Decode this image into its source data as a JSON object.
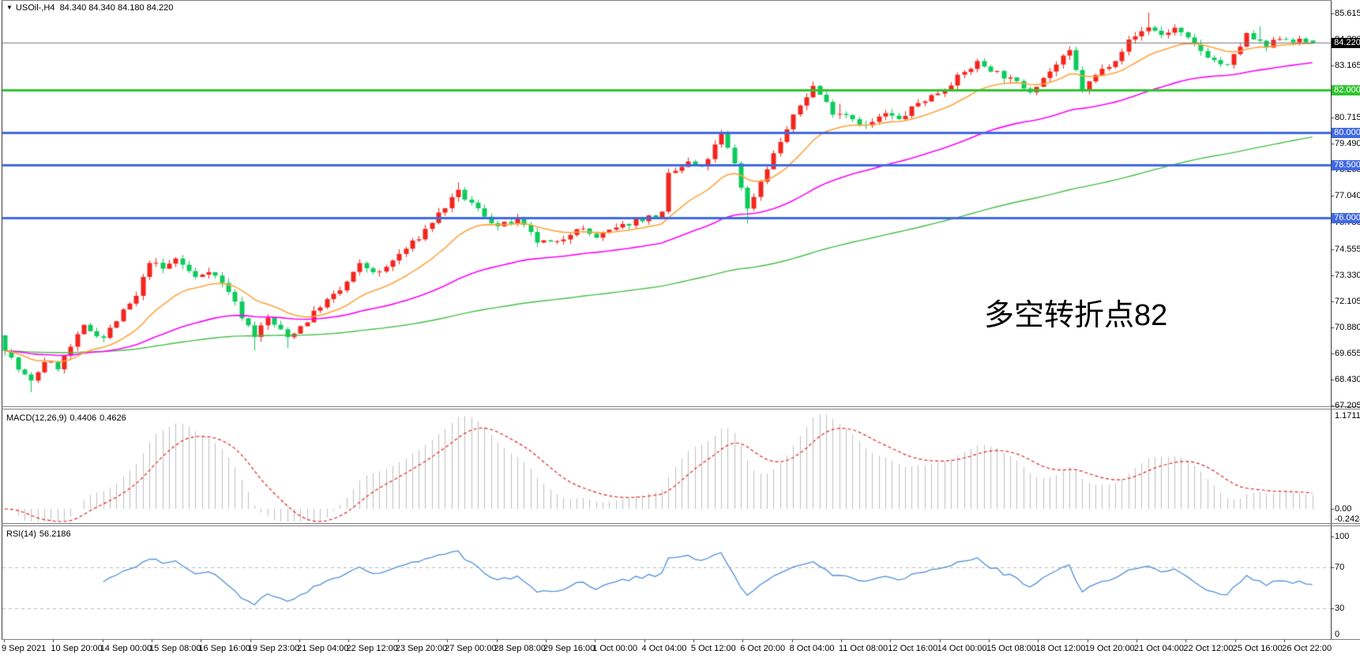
{
  "window": {
    "symbol_period": "USOil-,H4",
    "ohlc": "84.340 84.340 84.180 84.220",
    "dropdown_icon": "▼"
  },
  "chart_data": {
    "type": "candlestick",
    "symbol": "USOil-",
    "timeframe": "H4",
    "title": "USOil-,H4 84.340 84.340 84.180 84.220",
    "last_candle": {
      "open": 84.34,
      "high": 84.34,
      "low": 84.18,
      "close": 84.22
    },
    "price_axis_ticks": [
      "85.615",
      "84.390",
      "83.165",
      "81.940",
      "80.715",
      "79.490",
      "78.265",
      "77.040",
      "75.780",
      "74.555",
      "73.330",
      "72.105",
      "70.880",
      "69.655",
      "68.430",
      "67.205"
    ],
    "x_labels": [
      "9 Sep 2021",
      "10 Sep 20:00",
      "14 Sep 00:00",
      "15 Sep 08:00",
      "16 Sep 16:00",
      "19 Sep 23:00",
      "21 Sep 04:00",
      "22 Sep 12:00",
      "23 Sep 20:00",
      "27 Sep 00:00",
      "28 Sep 08:00",
      "29 Sep 16:00",
      "1 Oct 00:00",
      "4 Oct 04:00",
      "5 Oct 12:00",
      "6 Oct 20:00",
      "8 Oct 04:00",
      "11 Oct 08:00",
      "12 Oct 16:00",
      "14 Oct 00:00",
      "15 Oct 08:00",
      "18 Oct 12:00",
      "19 Oct 20:00",
      "21 Oct 04:00",
      "22 Oct 12:00",
      "25 Oct 16:00",
      "26 Oct 22:00"
    ],
    "levels": [
      {
        "price": 84.22,
        "label": "84.220",
        "kind": "current-price",
        "box_color": "#000000",
        "line_color": "#7b7b7b",
        "line_width": 1
      },
      {
        "price": 82.0,
        "label": "82.000",
        "kind": "horizontal-line",
        "box_color": "#2fc42f",
        "line_color": "#2fc42f",
        "line_width": 3
      },
      {
        "price": 80.0,
        "label": "80.000",
        "kind": "horizontal-line",
        "box_color": "#4169e1",
        "line_color": "#4169e1",
        "line_width": 3
      },
      {
        "price": 78.5,
        "label": "78.500",
        "kind": "horizontal-line",
        "box_color": "#4169e1",
        "line_color": "#4169e1",
        "line_width": 3
      },
      {
        "price": 76.0,
        "label": "76.000",
        "kind": "horizontal-line",
        "box_color": "#4169e1",
        "line_color": "#4169e1",
        "line_width": 3
      }
    ],
    "annotation": {
      "text": "多空转折点82",
      "color": "#ec1c24"
    },
    "candle_count": 200,
    "seed": 7,
    "noise_amp": 0.14,
    "swing_points": [
      [
        0,
        69.9
      ],
      [
        2,
        68.9
      ],
      [
        4,
        68.3
      ],
      [
        6,
        69.3
      ],
      [
        8,
        69.0
      ],
      [
        12,
        70.9
      ],
      [
        15,
        70.4
      ],
      [
        18,
        71.6
      ],
      [
        20,
        72.3
      ],
      [
        22,
        74.0
      ],
      [
        24,
        73.6
      ],
      [
        26,
        74.1
      ],
      [
        29,
        73.2
      ],
      [
        31,
        73.6
      ],
      [
        34,
        72.6
      ],
      [
        36,
        71.4
      ],
      [
        38,
        70.5
      ],
      [
        40,
        71.3
      ],
      [
        43,
        70.4
      ],
      [
        46,
        71.2
      ],
      [
        48,
        71.9
      ],
      [
        51,
        72.6
      ],
      [
        54,
        73.8
      ],
      [
        57,
        73.4
      ],
      [
        60,
        74.3
      ],
      [
        63,
        75.1
      ],
      [
        66,
        76.2
      ],
      [
        69,
        77.2
      ],
      [
        72,
        76.4
      ],
      [
        75,
        75.6
      ],
      [
        78,
        75.9
      ],
      [
        81,
        74.9
      ],
      [
        84,
        74.8
      ],
      [
        87,
        75.6
      ],
      [
        90,
        75.1
      ],
      [
        93,
        75.5
      ],
      [
        96,
        75.9
      ],
      [
        100,
        76.2
      ],
      [
        101,
        78.0
      ],
      [
        104,
        78.6
      ],
      [
        106,
        78.3
      ],
      [
        109,
        79.9
      ],
      [
        111,
        78.6
      ],
      [
        113,
        76.4
      ],
      [
        116,
        78.4
      ],
      [
        118,
        79.6
      ],
      [
        121,
        81.3
      ],
      [
        123,
        82.2
      ],
      [
        126,
        81.0
      ],
      [
        128,
        80.9
      ],
      [
        131,
        80.3
      ],
      [
        134,
        80.9
      ],
      [
        136,
        80.6
      ],
      [
        139,
        81.4
      ],
      [
        142,
        81.9
      ],
      [
        145,
        82.6
      ],
      [
        148,
        83.3
      ],
      [
        150,
        83.0
      ],
      [
        153,
        82.5
      ],
      [
        156,
        82.0
      ],
      [
        159,
        82.9
      ],
      [
        162,
        83.8
      ],
      [
        164,
        82.0
      ],
      [
        166,
        82.7
      ],
      [
        169,
        83.5
      ],
      [
        171,
        84.3
      ],
      [
        174,
        85.0
      ],
      [
        176,
        84.6
      ],
      [
        178,
        84.9
      ],
      [
        181,
        84.1
      ],
      [
        184,
        83.4
      ],
      [
        186,
        83.1
      ],
      [
        189,
        84.6
      ],
      [
        192,
        84.0
      ],
      [
        194,
        84.5
      ],
      [
        197,
        84.3
      ],
      [
        199,
        84.22
      ]
    ],
    "wick_events": [
      {
        "i": 4,
        "side": "low",
        "ext": 0.5
      },
      {
        "i": 38,
        "side": "low",
        "ext": 0.45
      },
      {
        "i": 43,
        "side": "low",
        "ext": 0.4
      },
      {
        "i": 69,
        "side": "high",
        "ext": 0.3
      },
      {
        "i": 113,
        "side": "low",
        "ext": 0.55
      },
      {
        "i": 127,
        "side": "high",
        "ext": 0.35
      },
      {
        "i": 174,
        "side": "high",
        "ext": 0.5
      },
      {
        "i": 191,
        "side": "high",
        "ext": 0.6
      }
    ],
    "colors": {
      "up": "#f4251d",
      "down": "#0bcb5c",
      "ma_fast": "#ffa33c",
      "ma_mid": "#ff00ff",
      "ma_slow": "#44be44",
      "macd_bar": "#bebebe",
      "macd_signal": "#e32222",
      "rsi_line": "#4d8fd9",
      "rsi_level": "#b9b9b9"
    },
    "moving_averages": [
      {
        "name": "fast-ma",
        "period": 16
      },
      {
        "name": "mid-ma",
        "period": 55
      },
      {
        "name": "slow-ma",
        "period": 160
      }
    ],
    "macd": {
      "label": "MACD(12,26,9)",
      "value_main": "0.4406",
      "value_signal": "0.4626",
      "axis_max": "1.1711",
      "axis_zero": "0.00",
      "axis_min": "-0.2424",
      "fast": 12,
      "slow": 26,
      "signal": 9
    },
    "rsi": {
      "label": "RSI(14)",
      "value": "56.2186",
      "period": 14,
      "axis": [
        "100",
        "70",
        "30",
        "0"
      ],
      "dashed_levels": [
        70,
        30
      ]
    }
  }
}
